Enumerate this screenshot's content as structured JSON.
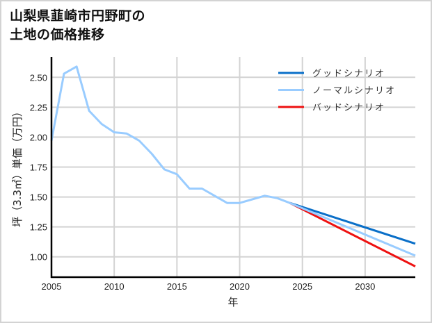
{
  "title": {
    "line1": "山梨県韮崎市円野町の",
    "line2": "土地の価格推移"
  },
  "colors": {
    "good": "#0a6fc8",
    "normal": "#99ccff",
    "bad": "#ee1111",
    "grid": "#d3d3d3",
    "axis": "#000000",
    "frame": "#d3d3d3"
  },
  "chart_data": {
    "type": "line",
    "title": "山梨県韮崎市円野町の土地の価格推移",
    "xlabel": "年",
    "ylabel": "坪（3.3㎡）単価（万円）",
    "xlim": [
      2005,
      2034
    ],
    "ylim": [
      0.83,
      2.67
    ],
    "xticks": [
      2005,
      2010,
      2015,
      2020,
      2025,
      2030
    ],
    "yticks": [
      1.0,
      1.25,
      1.5,
      1.75,
      2.0,
      2.25,
      2.5
    ],
    "ytick_labels": [
      "1.00",
      "1.25",
      "1.50",
      "1.75",
      "2.00",
      "2.25",
      "2.50"
    ],
    "grid": true,
    "legend_position": "upper right",
    "series": [
      {
        "name": "グッドシナリオ",
        "key": "good",
        "x": [
          2024,
          2034
        ],
        "values": [
          1.45,
          1.11
        ]
      },
      {
        "name": "ノーマルシナリオ",
        "key": "normal",
        "x": [
          2005,
          2006,
          2007,
          2008,
          2009,
          2010,
          2011,
          2012,
          2013,
          2014,
          2015,
          2016,
          2017,
          2018,
          2019,
          2020,
          2021,
          2022,
          2023,
          2024,
          2034
        ],
        "values": [
          1.97,
          2.53,
          2.59,
          2.22,
          2.11,
          2.04,
          2.03,
          1.97,
          1.86,
          1.73,
          1.69,
          1.57,
          1.57,
          1.51,
          1.45,
          1.45,
          1.48,
          1.51,
          1.49,
          1.45,
          1.01
        ]
      },
      {
        "name": "バッドシナリオ",
        "key": "bad",
        "x": [
          2024,
          2034
        ],
        "values": [
          1.45,
          0.92
        ]
      }
    ]
  }
}
